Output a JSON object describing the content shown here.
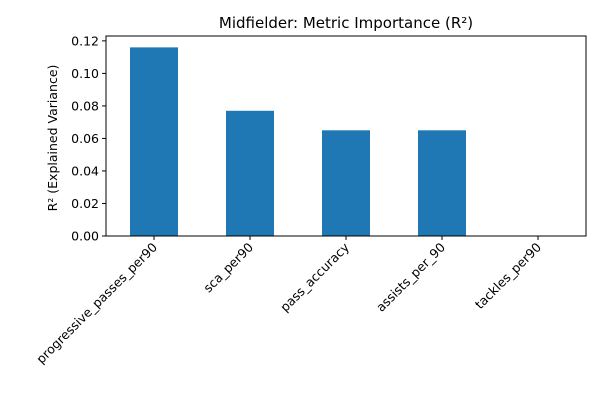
{
  "chart_data": {
    "type": "bar",
    "title": "Midfielder: Metric Importance (R²)",
    "xlabel": "",
    "ylabel": "R² (Explained Variance)",
    "categories": [
      "progressive_passes_per90",
      "sca_per90",
      "pass_accuracy",
      "assists_per_90",
      "tackles_per90"
    ],
    "values": [
      0.116,
      0.077,
      0.065,
      0.065,
      0.0
    ],
    "ylim": [
      0,
      0.123
    ],
    "yticks": [
      0.0,
      0.02,
      0.04,
      0.06,
      0.08,
      0.1,
      0.12
    ],
    "ytick_labels": [
      "0.00",
      "0.02",
      "0.04",
      "0.06",
      "0.08",
      "0.10",
      "0.12"
    ],
    "bar_color": "#1f77b4",
    "grid": false,
    "legend": false
  }
}
